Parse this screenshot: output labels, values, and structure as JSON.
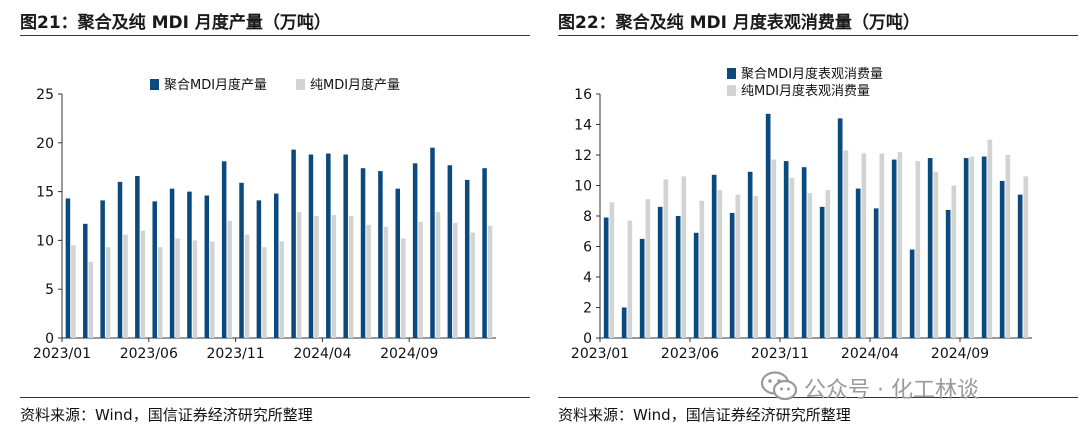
{
  "colors": {
    "primary": "#0c4a7e",
    "secondary": "#d3d3d3",
    "watermark": "#9a9a9a"
  },
  "watermark": {
    "text": "公众号 · 化工林谈",
    "icon": "wechat-icon"
  },
  "charts": [
    {
      "title": "图21：聚合及纯 MDI 月度产量（万吨）",
      "source": "资料来源：Wind，国信证券经济研究所整理"
    },
    {
      "title": "图22：聚合及纯 MDI 月度表观消费量（万吨）",
      "source": "资料来源：Wind，国信证券经济研究所整理"
    }
  ],
  "chart_data": [
    {
      "type": "bar",
      "title": "",
      "xlabel": "",
      "ylabel": "",
      "ylim": [
        0,
        25
      ],
      "yticks": [
        "0",
        "5",
        "10",
        "15",
        "20",
        "25"
      ],
      "grid": false,
      "legend": "top-center",
      "categories": [
        "2023/01",
        "2023/02",
        "2023/03",
        "2023/04",
        "2023/05",
        "2023/06",
        "2023/07",
        "2023/08",
        "2023/09",
        "2023/10",
        "2023/11",
        "2023/12",
        "2024/01",
        "2024/02",
        "2024/03",
        "2024/04",
        "2024/05",
        "2024/06",
        "2024/07",
        "2024/08",
        "2024/09",
        "2024/10",
        "2024/11",
        "2024/12",
        "2025/01"
      ],
      "x_tick_labels": [
        {
          "index": 0,
          "label": "2023/01"
        },
        {
          "index": 5,
          "label": "2023/06"
        },
        {
          "index": 10,
          "label": "2023/11"
        },
        {
          "index": 15,
          "label": "2024/04"
        },
        {
          "index": 20,
          "label": "2024/09"
        }
      ],
      "series": [
        {
          "name": "聚合MDI月度产量",
          "color": "#0c4a7e",
          "values": [
            14.3,
            11.7,
            14.1,
            16.0,
            16.6,
            14.0,
            15.3,
            15.0,
            14.6,
            18.1,
            15.9,
            14.1,
            14.8,
            19.3,
            18.8,
            18.9,
            18.8,
            17.4,
            17.1,
            15.3,
            17.9,
            19.5,
            17.7,
            16.2,
            17.4
          ]
        },
        {
          "name": "纯MDI月度产量",
          "color": "#d3d3d3",
          "values": [
            9.5,
            7.8,
            9.3,
            10.6,
            11.0,
            9.3,
            10.2,
            10.0,
            9.9,
            12.0,
            10.6,
            9.3,
            9.9,
            12.9,
            12.5,
            12.6,
            12.5,
            11.6,
            11.4,
            10.2,
            11.9,
            12.9,
            11.8,
            10.8,
            11.5
          ]
        }
      ]
    },
    {
      "type": "bar",
      "title": "",
      "xlabel": "",
      "ylabel": "",
      "ylim": [
        0,
        16
      ],
      "yticks": [
        "0",
        "2",
        "4",
        "6",
        "8",
        "10",
        "12",
        "14",
        "16"
      ],
      "grid": false,
      "legend": "top-left",
      "categories": [
        "2023/01",
        "2023/02",
        "2023/03",
        "2023/04",
        "2023/05",
        "2023/06",
        "2023/07",
        "2023/08",
        "2023/09",
        "2023/10",
        "2023/11",
        "2023/12",
        "2024/01",
        "2024/02",
        "2024/03",
        "2024/04",
        "2024/05",
        "2024/06",
        "2024/07",
        "2024/08",
        "2024/09",
        "2024/10",
        "2024/11",
        "2024/12"
      ],
      "x_tick_labels": [
        {
          "index": 0,
          "label": "2023/01"
        },
        {
          "index": 5,
          "label": "2023/06"
        },
        {
          "index": 10,
          "label": "2023/11"
        },
        {
          "index": 15,
          "label": "2024/04"
        },
        {
          "index": 20,
          "label": "2024/09"
        }
      ],
      "series": [
        {
          "name": "聚合MDI月度表观消费量",
          "color": "#0c4a7e",
          "values": [
            7.9,
            2.0,
            6.5,
            8.6,
            8.0,
            6.9,
            10.7,
            8.2,
            10.9,
            14.7,
            11.6,
            11.2,
            8.6,
            14.4,
            9.8,
            8.5,
            11.7,
            5.8,
            11.8,
            8.4,
            11.8,
            11.9,
            10.3,
            9.4
          ]
        },
        {
          "name": "纯MDI月度表观消费量",
          "color": "#d3d3d3",
          "values": [
            8.9,
            7.7,
            9.1,
            10.4,
            10.6,
            9.0,
            9.7,
            9.4,
            9.3,
            11.7,
            10.5,
            9.5,
            9.7,
            12.3,
            12.1,
            12.1,
            12.2,
            11.6,
            10.9,
            10.0,
            11.9,
            13.0,
            12.0,
            10.6
          ]
        }
      ]
    }
  ]
}
